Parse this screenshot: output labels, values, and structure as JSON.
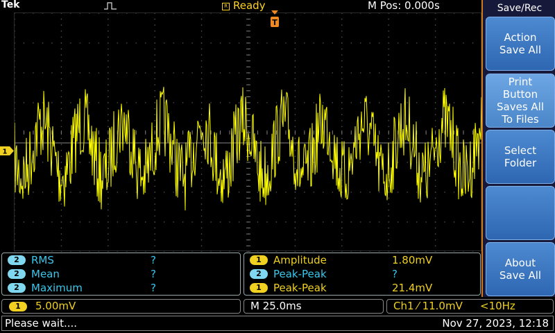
{
  "topbar": {
    "brand": "Tek",
    "acq_state": "Ready",
    "acq_badge": "R",
    "position": "M Pos: 0.000s"
  },
  "screen": {
    "trigger_marker": "T",
    "ch1_marker": "1",
    "trace_color": "#ffff00"
  },
  "menu": {
    "title": "Save/Rec",
    "buttons": [
      {
        "label": "Action\nSave All"
      },
      {
        "label": "Print\nButton\nSaves All\nTo Files"
      },
      {
        "label": "Select\nFolder"
      },
      {
        "label": ""
      },
      {
        "label": "About\nSave All"
      }
    ]
  },
  "measurements_left": [
    {
      "ch": "2",
      "name": "RMS",
      "value": "?"
    },
    {
      "ch": "2",
      "name": "Mean",
      "value": "?"
    },
    {
      "ch": "2",
      "name": "Maximum",
      "value": "?"
    }
  ],
  "measurements_right": [
    {
      "ch": "1",
      "name": "Amplitude",
      "value": "1.80mV"
    },
    {
      "ch": "2",
      "name": "Peak-Peak",
      "value": "?"
    },
    {
      "ch": "1",
      "name": "Peak-Peak",
      "value": "21.4mV"
    }
  ],
  "bottom": {
    "ch1_badge": "1",
    "ch1_scale": "5.00mV",
    "timebase": "M 25.0ms",
    "trigger": "Ch1 ⁄ 11.0mV",
    "trigger_freq": "<10Hz",
    "status": "Please wait....",
    "datetime": "Nov 27, 2023, 12:18"
  }
}
